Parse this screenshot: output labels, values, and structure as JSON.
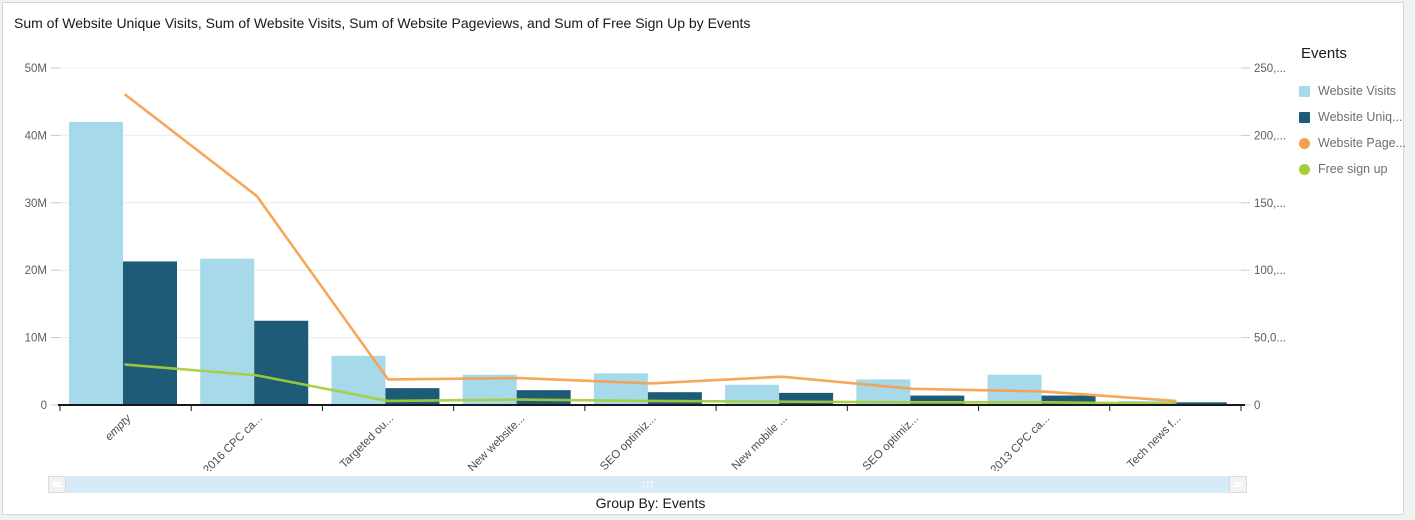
{
  "title": "Sum of Website Unique Visits, Sum of Website Visits, Sum of Website Pageviews, and Sum of Free Sign Up by Events",
  "legend": {
    "title": "Events",
    "items": [
      {
        "label": "Website Visits",
        "swatch": "square",
        "color": "#a6daea"
      },
      {
        "label": "Website Uniq...",
        "swatch": "square",
        "color": "#1e5b77"
      },
      {
        "label": "Website Page...",
        "swatch": "circle",
        "color": "#f5a04c"
      },
      {
        "label": "Free sign up",
        "swatch": "circle",
        "color": "#a6ce39"
      }
    ]
  },
  "icons": {
    "scroll_left_button": "grip-icon",
    "scroll_right_button": "grip-icon",
    "scroll_handle": "drag-dots-icon"
  },
  "chart_data": {
    "type": "combo bar-line (dual axis)",
    "title": "Sum of Website Unique Visits, Sum of Website Visits, Sum of Website Pageviews, and Sum of Free Sign Up by Events",
    "x_axis_title": "Group By: Events",
    "grid": "horizontal gridlines on",
    "legend_position": "right",
    "categories": [
      {
        "label": "empty",
        "italic": true
      },
      {
        "label": "2016 CPC ca...",
        "italic": false
      },
      {
        "label": "Targeted ou...",
        "italic": false
      },
      {
        "label": "New website...",
        "italic": false
      },
      {
        "label": "SEO optimiz...",
        "italic": false
      },
      {
        "label": "New mobile ...",
        "italic": false
      },
      {
        "label": "SEO optimiz...",
        "italic": false
      },
      {
        "label": "2013 CPC ca...",
        "italic": false
      },
      {
        "label": "Tech news f...",
        "italic": false
      }
    ],
    "left_axis": {
      "min": 0,
      "max": 50000000,
      "tick_labels": [
        "0",
        "10M",
        "20M",
        "30M",
        "40M",
        "50M"
      ]
    },
    "right_axis": {
      "min": 0,
      "max": 250000,
      "tick_labels": [
        "0",
        "50,0...",
        "100,...",
        "150,...",
        "200,...",
        "250,..."
      ]
    },
    "series": [
      {
        "name": "Website Visits",
        "type": "bar",
        "axis": "left",
        "color": "#a6daea",
        "values": [
          42000000,
          21700000,
          7300000,
          4500000,
          4700000,
          3000000,
          3800000,
          4500000,
          600000
        ]
      },
      {
        "name": "Website Unique Visits",
        "type": "bar",
        "axis": "left",
        "color": "#1e5b77",
        "values": [
          21300000,
          12500000,
          2500000,
          2200000,
          1900000,
          1800000,
          1400000,
          1400000,
          400000
        ]
      },
      {
        "name": "Website Pageviews",
        "type": "line",
        "axis": "right",
        "color": "#f5a04c",
        "values": [
          230000,
          155000,
          19000,
          20000,
          16000,
          21000,
          12000,
          10000,
          3000
        ]
      },
      {
        "name": "Free sign up",
        "type": "line",
        "axis": "right",
        "color": "#a6ce39",
        "values": [
          30000,
          22000,
          3000,
          4000,
          3000,
          2500,
          2000,
          2000,
          1000
        ]
      }
    ]
  }
}
